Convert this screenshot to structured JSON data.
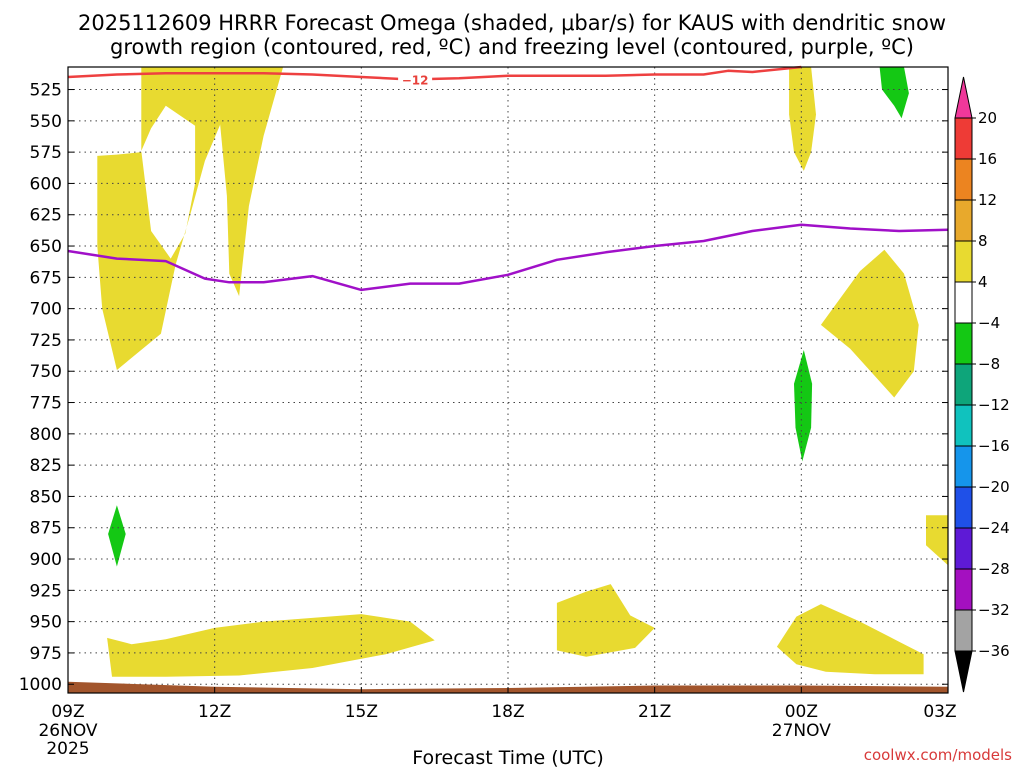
{
  "chart_data": {
    "type": "heatmap",
    "title_line1": "2025112609 HRRR Forecast Omega (shaded, μbar/s) for KAUS with dendritic snow",
    "title_line2": "growth region (contoured, red, ºC) and freezing level (contoured, purple, ºC)",
    "xlabel": "Forecast Time (UTC)",
    "credit": "coolwx.com/models",
    "x_hour_range": [
      0,
      18
    ],
    "y_pressure_range": [
      507,
      1007
    ],
    "x_ticks": [
      {
        "hour": 0,
        "label": "09Z",
        "sub1": "26NOV",
        "sub2": "2025"
      },
      {
        "hour": 3,
        "label": "12Z"
      },
      {
        "hour": 6,
        "label": "15Z"
      },
      {
        "hour": 9,
        "label": "18Z"
      },
      {
        "hour": 12,
        "label": "21Z"
      },
      {
        "hour": 15,
        "label": "00Z",
        "sub1": "27NOV"
      },
      {
        "hour": 18,
        "label": "03Z"
      }
    ],
    "y_ticks": [
      525,
      550,
      575,
      600,
      625,
      650,
      675,
      700,
      725,
      750,
      775,
      800,
      825,
      850,
      875,
      900,
      925,
      950,
      975,
      1000
    ],
    "colorbar": {
      "levels": [
        "20",
        "16",
        "12",
        "8",
        "4",
        "−4",
        "−8",
        "−12",
        "−16",
        "−20",
        "−24",
        "−28",
        "−32",
        "−36"
      ],
      "colors": [
        "#f0389a",
        "#ee3b36",
        "#ec8420",
        "#e8a92c",
        "#e8da30",
        "#ffffff",
        "#14c814",
        "#0ea57a",
        "#10c2be",
        "#1595eb",
        "#1f50e8",
        "#5e1ad6",
        "#a410c0",
        "#a3a3a3",
        "#000000"
      ]
    },
    "freezing_level": {
      "name": "freezing level (purple)",
      "color": "#a010c8",
      "points": [
        [
          0,
          654
        ],
        [
          1,
          660
        ],
        [
          2,
          662
        ],
        [
          2.8,
          676
        ],
        [
          3.3,
          679
        ],
        [
          4,
          679
        ],
        [
          5,
          674
        ],
        [
          6,
          685
        ],
        [
          7,
          680
        ],
        [
          8,
          680
        ],
        [
          9,
          673
        ],
        [
          10,
          661
        ],
        [
          11,
          655
        ],
        [
          12,
          650
        ],
        [
          13,
          646
        ],
        [
          14,
          638
        ],
        [
          15,
          633
        ],
        [
          16,
          636
        ],
        [
          17,
          638
        ],
        [
          18,
          637
        ]
      ]
    },
    "dgz_top": {
      "name": "dendritic snow growth region (red)",
      "label": "−12",
      "label_hour": 7.1,
      "color": "#ee4040",
      "points": [
        [
          0,
          515
        ],
        [
          1,
          513
        ],
        [
          2,
          512
        ],
        [
          3,
          512
        ],
        [
          4,
          512
        ],
        [
          5,
          513
        ],
        [
          6,
          515
        ],
        [
          7,
          517
        ],
        [
          8,
          516
        ],
        [
          9,
          514
        ],
        [
          10,
          514
        ],
        [
          11,
          514
        ],
        [
          12,
          513
        ],
        [
          13,
          513
        ],
        [
          13.5,
          510
        ],
        [
          14,
          511
        ],
        [
          15,
          507
        ]
      ]
    },
    "ground": {
      "color": "#a2552c",
      "points": [
        [
          0,
          998
        ],
        [
          3,
          1002
        ],
        [
          6,
          1004
        ],
        [
          9,
          1003
        ],
        [
          12,
          1001
        ],
        [
          15,
          1001
        ],
        [
          18,
          1002
        ]
      ]
    },
    "omega_regions": [
      {
        "name": "upward 4-8 column near 11Z",
        "color": "#e8da30",
        "points": [
          [
            1.5,
            507
          ],
          [
            3.1,
            507
          ],
          [
            3.3,
            525
          ],
          [
            3.2,
            545
          ],
          [
            2.8,
            582
          ],
          [
            2.5,
            625
          ],
          [
            2.2,
            665
          ],
          [
            1.9,
            720
          ],
          [
            1.0,
            749
          ],
          [
            0.7,
            700
          ],
          [
            0.6,
            650
          ],
          [
            0.6,
            578
          ],
          [
            1.0,
            577
          ],
          [
            1.5,
            575
          ]
        ],
        "hole": [
          [
            2.0,
            538
          ],
          [
            2.6,
            554
          ],
          [
            2.6,
            600
          ],
          [
            2.4,
            640
          ],
          [
            2.1,
            660
          ],
          [
            1.7,
            638
          ],
          [
            1.5,
            574
          ],
          [
            1.7,
            556
          ]
        ]
      },
      {
        "name": "upward 4-8 strip near 12-13Z",
        "color": "#e8da30",
        "points": [
          [
            3.0,
            507
          ],
          [
            4.4,
            507
          ],
          [
            4.0,
            562
          ],
          [
            3.7,
            618
          ],
          [
            3.5,
            690
          ],
          [
            3.3,
            672
          ],
          [
            3.25,
            610
          ]
        ]
      },
      {
        "name": "upward 4-8 low levels 10-16Z",
        "color": "#e8da30",
        "points": [
          [
            0.8,
            963
          ],
          [
            1.3,
            968
          ],
          [
            2.0,
            964
          ],
          [
            3.0,
            955
          ],
          [
            4.0,
            950
          ],
          [
            5.0,
            947
          ],
          [
            6.0,
            944
          ],
          [
            7.0,
            950
          ],
          [
            7.5,
            965
          ],
          [
            6.5,
            976
          ],
          [
            5.0,
            987
          ],
          [
            3.5,
            993
          ],
          [
            2.0,
            994
          ],
          [
            0.9,
            994
          ]
        ]
      },
      {
        "name": "upward 4-8 near 19-20Z",
        "color": "#e8da30",
        "points": [
          [
            10.0,
            935
          ],
          [
            10.6,
            926
          ],
          [
            11.1,
            920
          ],
          [
            11.5,
            945
          ],
          [
            12.0,
            955
          ],
          [
            11.6,
            971
          ],
          [
            10.6,
            978
          ],
          [
            10.0,
            973
          ]
        ]
      },
      {
        "name": "upward 4-8 near 00-02Z",
        "color": "#e8da30",
        "points": [
          [
            14.5,
            970
          ],
          [
            14.9,
            946
          ],
          [
            15.4,
            936
          ],
          [
            16.2,
            950
          ],
          [
            17.0,
            966
          ],
          [
            17.5,
            976
          ],
          [
            17.5,
            992
          ],
          [
            16.5,
            992
          ],
          [
            15.5,
            990
          ],
          [
            14.9,
            984
          ]
        ]
      },
      {
        "name": "upward 4-8 near 02Z mid levels",
        "color": "#e8da30",
        "points": [
          [
            15.4,
            713
          ],
          [
            16.2,
            670
          ],
          [
            16.7,
            653
          ],
          [
            17.1,
            672
          ],
          [
            17.4,
            713
          ],
          [
            17.3,
            750
          ],
          [
            16.9,
            771
          ],
          [
            16.0,
            732
          ]
        ]
      },
      {
        "name": "upward 4-8 near 00Z upper",
        "color": "#e8da30",
        "points": [
          [
            14.75,
            507
          ],
          [
            15.2,
            507
          ],
          [
            15.3,
            545
          ],
          [
            15.2,
            575
          ],
          [
            15.05,
            590
          ],
          [
            14.85,
            575
          ],
          [
            14.75,
            545
          ]
        ]
      },
      {
        "name": "upward 4-8 near 03Z low",
        "color": "#e8da30",
        "points": [
          [
            17.55,
            865
          ],
          [
            18,
            865
          ],
          [
            18,
            905
          ],
          [
            17.55,
            889
          ]
        ]
      },
      {
        "name": "downward -4 to -8 near 02Z upper",
        "color": "#14c814",
        "points": [
          [
            16.6,
            507
          ],
          [
            17.1,
            507
          ],
          [
            17.2,
            528
          ],
          [
            17.05,
            548
          ],
          [
            16.9,
            538
          ],
          [
            16.65,
            525
          ]
        ]
      },
      {
        "name": "downward -4 to -8 near 00Z",
        "color": "#14c814",
        "points": [
          [
            15.05,
            733
          ],
          [
            15.22,
            760
          ],
          [
            15.2,
            795
          ],
          [
            15.02,
            822
          ],
          [
            14.88,
            795
          ],
          [
            14.85,
            760
          ]
        ]
      },
      {
        "name": "downward -4 to -8 near 10Z",
        "color": "#14c814",
        "points": [
          [
            1.0,
            857
          ],
          [
            1.18,
            880
          ],
          [
            1.0,
            906
          ],
          [
            0.82,
            880
          ]
        ]
      }
    ]
  }
}
